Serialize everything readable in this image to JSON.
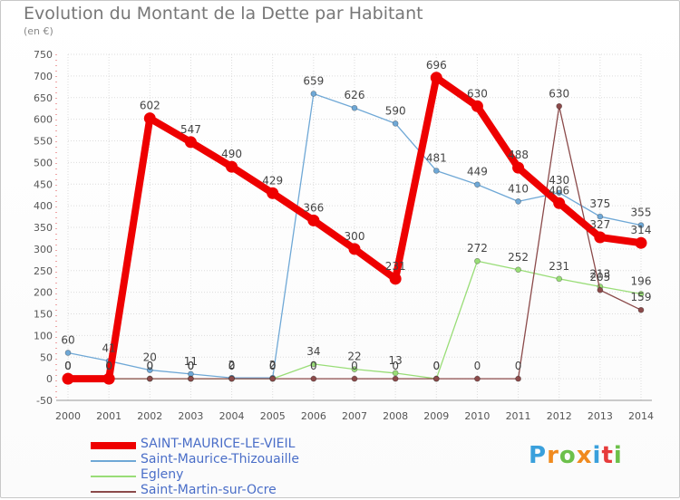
{
  "chart_data": {
    "type": "line",
    "title": "Evolution du Montant de la Dette par Habitant",
    "unit_label": "(en €)",
    "xlabel": "",
    "ylabel": "",
    "ylim": [
      -50,
      750
    ],
    "yticks": [
      -50,
      0,
      50,
      100,
      150,
      200,
      250,
      300,
      350,
      400,
      450,
      500,
      550,
      600,
      650,
      700,
      750
    ],
    "x": [
      2000,
      2001,
      2002,
      2003,
      2004,
      2005,
      2006,
      2007,
      2008,
      2009,
      2010,
      2011,
      2012,
      2013,
      2014
    ],
    "series": [
      {
        "name": "SAINT-MAURICE-LE-VIEIL",
        "color": "#ee0000",
        "emphasis": true,
        "values": [
          0,
          0,
          602,
          547,
          490,
          429,
          366,
          300,
          231,
          696,
          630,
          488,
          406,
          327,
          314
        ]
      },
      {
        "name": "Saint-Maurice-Thizouaille",
        "color": "#6fa8d6",
        "emphasis": false,
        "values": [
          60,
          41,
          20,
          11,
          2,
          2,
          659,
          626,
          590,
          481,
          449,
          410,
          430,
          375,
          355
        ]
      },
      {
        "name": "Egleny",
        "color": "#99dd77",
        "emphasis": false,
        "values": [
          0,
          0,
          0,
          0,
          0,
          0,
          34,
          22,
          13,
          0,
          272,
          252,
          231,
          213,
          196
        ]
      },
      {
        "name": "Saint-Martin-sur-Ocre",
        "color": "#8b4a4a",
        "emphasis": false,
        "values": [
          0,
          0,
          0,
          0,
          0,
          0,
          0,
          0,
          0,
          0,
          0,
          0,
          630,
          205,
          159
        ]
      }
    ]
  },
  "logo": {
    "text": "Proxiti",
    "letters": [
      "P",
      "r",
      "o",
      "x",
      "i",
      "t",
      "i"
    ]
  }
}
